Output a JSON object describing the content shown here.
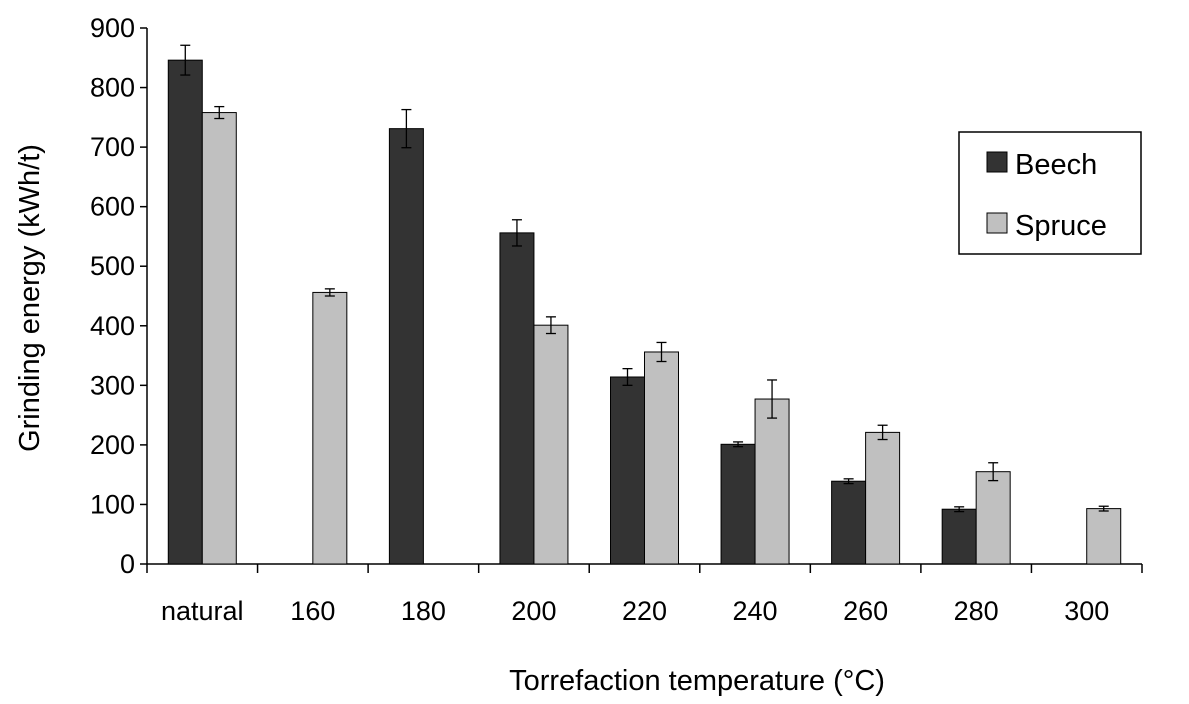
{
  "chart_data": {
    "type": "bar",
    "title": "",
    "xlabel": "Torrefaction temperature (°C)",
    "ylabel": "Grinding energy (kWh/t)",
    "ylim": [
      0,
      900
    ],
    "yticks": [
      "0",
      "100",
      "200",
      "300",
      "400",
      "500",
      "600",
      "700",
      "800",
      "900"
    ],
    "categories": [
      "natural",
      "160",
      "180",
      "200",
      "220",
      "240",
      "260",
      "280",
      "300"
    ],
    "grid": false,
    "legend_position": "right",
    "series": [
      {
        "name": "Beech",
        "color": "#333333",
        "values": [
          846,
          null,
          731,
          556,
          314,
          201,
          139,
          92,
          null
        ],
        "error": [
          25,
          null,
          32,
          22,
          14,
          4,
          4,
          4,
          null
        ]
      },
      {
        "name": "Spruce",
        "color": "#c0c0c0",
        "values": [
          758,
          456,
          null,
          401,
          356,
          277,
          221,
          155,
          93
        ],
        "error": [
          10,
          6,
          null,
          14,
          16,
          32,
          12,
          15,
          4
        ]
      }
    ]
  }
}
